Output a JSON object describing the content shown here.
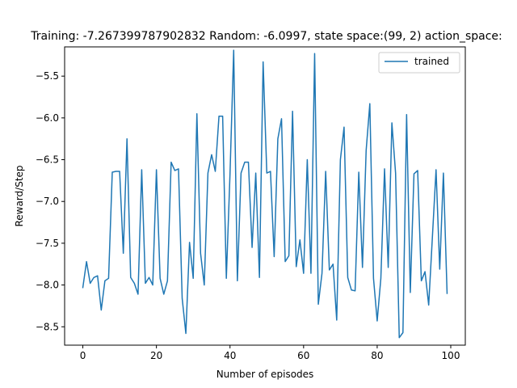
{
  "chart_data": {
    "type": "line",
    "title": "Training: -7.267399787902832 Random: -6.0997, state space:(99, 2) action_space:",
    "xlabel": "Number of episodes",
    "ylabel": "Reward/Step",
    "xlim": [
      -4.95,
      103.95
    ],
    "ylim": [
      -8.72,
      -5.15
    ],
    "xticks": [
      0,
      20,
      40,
      60,
      80,
      100
    ],
    "yticks": [
      -8.5,
      -8.0,
      -7.5,
      -7.0,
      -6.5,
      -6.0,
      -5.5
    ],
    "ytick_labels": [
      "−8.5",
      "−8.0",
      "−7.5",
      "−7.0",
      "−6.5",
      "−6.0",
      "−5.5"
    ],
    "grid": false,
    "legend_position": "upper right",
    "series": [
      {
        "name": "trained",
        "color": "#1f77b4",
        "x": [
          0,
          1,
          2,
          3,
          4,
          5,
          6,
          7,
          8,
          9,
          10,
          11,
          12,
          13,
          14,
          15,
          16,
          17,
          18,
          19,
          20,
          21,
          22,
          23,
          24,
          25,
          26,
          27,
          28,
          29,
          30,
          31,
          32,
          33,
          34,
          35,
          36,
          37,
          38,
          39,
          40,
          41,
          42,
          43,
          44,
          45,
          46,
          47,
          48,
          49,
          50,
          51,
          52,
          53,
          54,
          55,
          56,
          57,
          58,
          59,
          60,
          61,
          62,
          63,
          64,
          65,
          66,
          67,
          68,
          69,
          70,
          71,
          72,
          73,
          74,
          75,
          76,
          77,
          78,
          79,
          80,
          81,
          82,
          83,
          84,
          85,
          86,
          87,
          88,
          89,
          90,
          91,
          92,
          93,
          94,
          95,
          96,
          97,
          98,
          99
        ],
        "values": [
          -8.03,
          -7.72,
          -7.98,
          -7.91,
          -7.89,
          -8.3,
          -7.95,
          -7.92,
          -6.65,
          -6.64,
          -6.64,
          -7.62,
          -6.25,
          -7.91,
          -7.98,
          -8.11,
          -6.62,
          -7.98,
          -7.91,
          -8.0,
          -6.62,
          -7.92,
          -8.11,
          -7.95,
          -6.53,
          -6.63,
          -6.61,
          -8.16,
          -8.58,
          -7.49,
          -7.92,
          -5.95,
          -7.62,
          -8.0,
          -6.66,
          -6.44,
          -6.64,
          -5.98,
          -5.98,
          -7.92,
          -6.67,
          -5.19,
          -7.95,
          -6.66,
          -6.53,
          -6.53,
          -7.55,
          -6.66,
          -7.91,
          -5.33,
          -6.66,
          -6.64,
          -7.66,
          -6.25,
          -6.01,
          -7.72,
          -7.65,
          -5.92,
          -7.78,
          -7.46,
          -7.86,
          -6.5,
          -7.86,
          -5.23,
          -8.23,
          -7.86,
          -6.64,
          -7.82,
          -7.75,
          -8.42,
          -6.5,
          -6.11,
          -7.91,
          -8.06,
          -8.07,
          -6.65,
          -7.79,
          -6.39,
          -5.83,
          -7.92,
          -8.43,
          -7.92,
          -6.61,
          -7.79,
          -6.06,
          -6.66,
          -8.63,
          -8.57,
          -5.96,
          -8.09,
          -6.67,
          -6.63,
          -7.95,
          -7.84,
          -8.24,
          -7.43,
          -6.62,
          -7.81,
          -6.66,
          -8.1
        ]
      }
    ]
  }
}
